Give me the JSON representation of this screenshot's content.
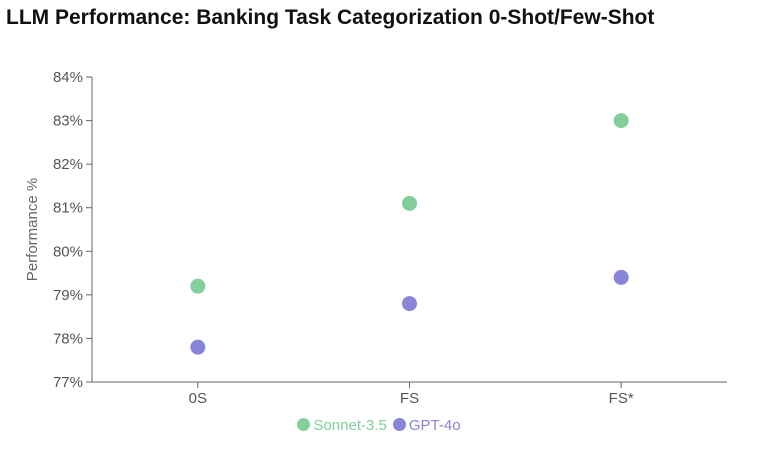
{
  "chart_data": {
    "type": "scatter",
    "title": "LLM Performance: Banking Task Categorization 0-Shot/Few-Shot",
    "xlabel": "",
    "ylabel": "Performance %",
    "categories": [
      "0S",
      "FS",
      "FS*"
    ],
    "ylim": [
      77,
      84
    ],
    "yticks": [
      77,
      78,
      79,
      80,
      81,
      82,
      83,
      84
    ],
    "ytick_suffix": "%",
    "grid": false,
    "legend_position": "bottom-center",
    "series": [
      {
        "name": "Sonnet-3.5",
        "color": "#82cf9c",
        "values": [
          79.2,
          81.1,
          83.0
        ]
      },
      {
        "name": "GPT-4o",
        "color": "#8884d8",
        "values": [
          77.8,
          78.8,
          79.4
        ]
      }
    ]
  }
}
